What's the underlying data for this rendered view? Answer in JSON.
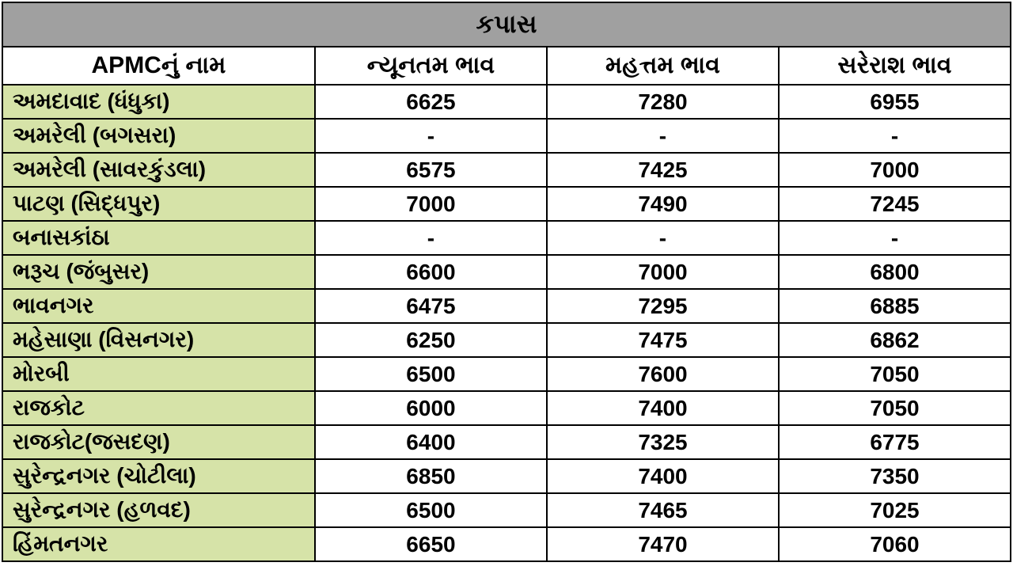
{
  "table": {
    "title": "કપાસ",
    "columns": [
      "APMCનું નામ",
      "ન્યૂનતમ ભાવ",
      "મહત્તમ ભાવ",
      "સરેરાશ ભાવ"
    ],
    "rows": [
      {
        "name": "અમદાવાદ (ધંધુકા)",
        "min": "6625",
        "max": "7280",
        "avg": "6955"
      },
      {
        "name": "અમરેલી (બગસરા)",
        "min": "-",
        "max": "-",
        "avg": "-"
      },
      {
        "name": "અમરેલી (સાવરકુંડલા)",
        "min": "6575",
        "max": "7425",
        "avg": "7000"
      },
      {
        "name": "પાટણ (સિદ્ધપુર)",
        "min": "7000",
        "max": "7490",
        "avg": "7245"
      },
      {
        "name": "બનાસકાંઠા",
        "min": "-",
        "max": "-",
        "avg": "-"
      },
      {
        "name": "ભરૂચ (જંબુસર)",
        "min": "6600",
        "max": "7000",
        "avg": "6800"
      },
      {
        "name": "ભાવનગર",
        "min": "6475",
        "max": "7295",
        "avg": "6885"
      },
      {
        "name": "મહેસાણા (વિસનગર)",
        "min": "6250",
        "max": "7475",
        "avg": "6862"
      },
      {
        "name": "મોરબી",
        "min": "6500",
        "max": "7600",
        "avg": "7050"
      },
      {
        "name": "રાજકોટ",
        "min": "6000",
        "max": "7400",
        "avg": "7050"
      },
      {
        "name": "રાજકોટ(જસદણ)",
        "min": "6400",
        "max": "7325",
        "avg": "6775"
      },
      {
        "name": "સુરેન્દ્રનગર (ચોટીલા)",
        "min": "6850",
        "max": "7400",
        "avg": "7350"
      },
      {
        "name": "સુરેન્દ્રનગર (હળવદ)",
        "min": "6500",
        "max": "7465",
        "avg": "7025"
      },
      {
        "name": "હિંમતનગર",
        "min": "6650",
        "max": "7470",
        "avg": "7060"
      }
    ],
    "styling": {
      "title_bg": "#a0a0a0",
      "header_bg": "#ffffff",
      "name_cell_bg": "#d6e3a8",
      "value_cell_bg": "#ffffff",
      "border_color": "#000000",
      "text_color": "#000000",
      "font_size": 28,
      "title_font_size": 32,
      "header_font_size": 30,
      "font_weight": "bold",
      "name_col_width": "31%",
      "value_col_width": "23%"
    }
  }
}
